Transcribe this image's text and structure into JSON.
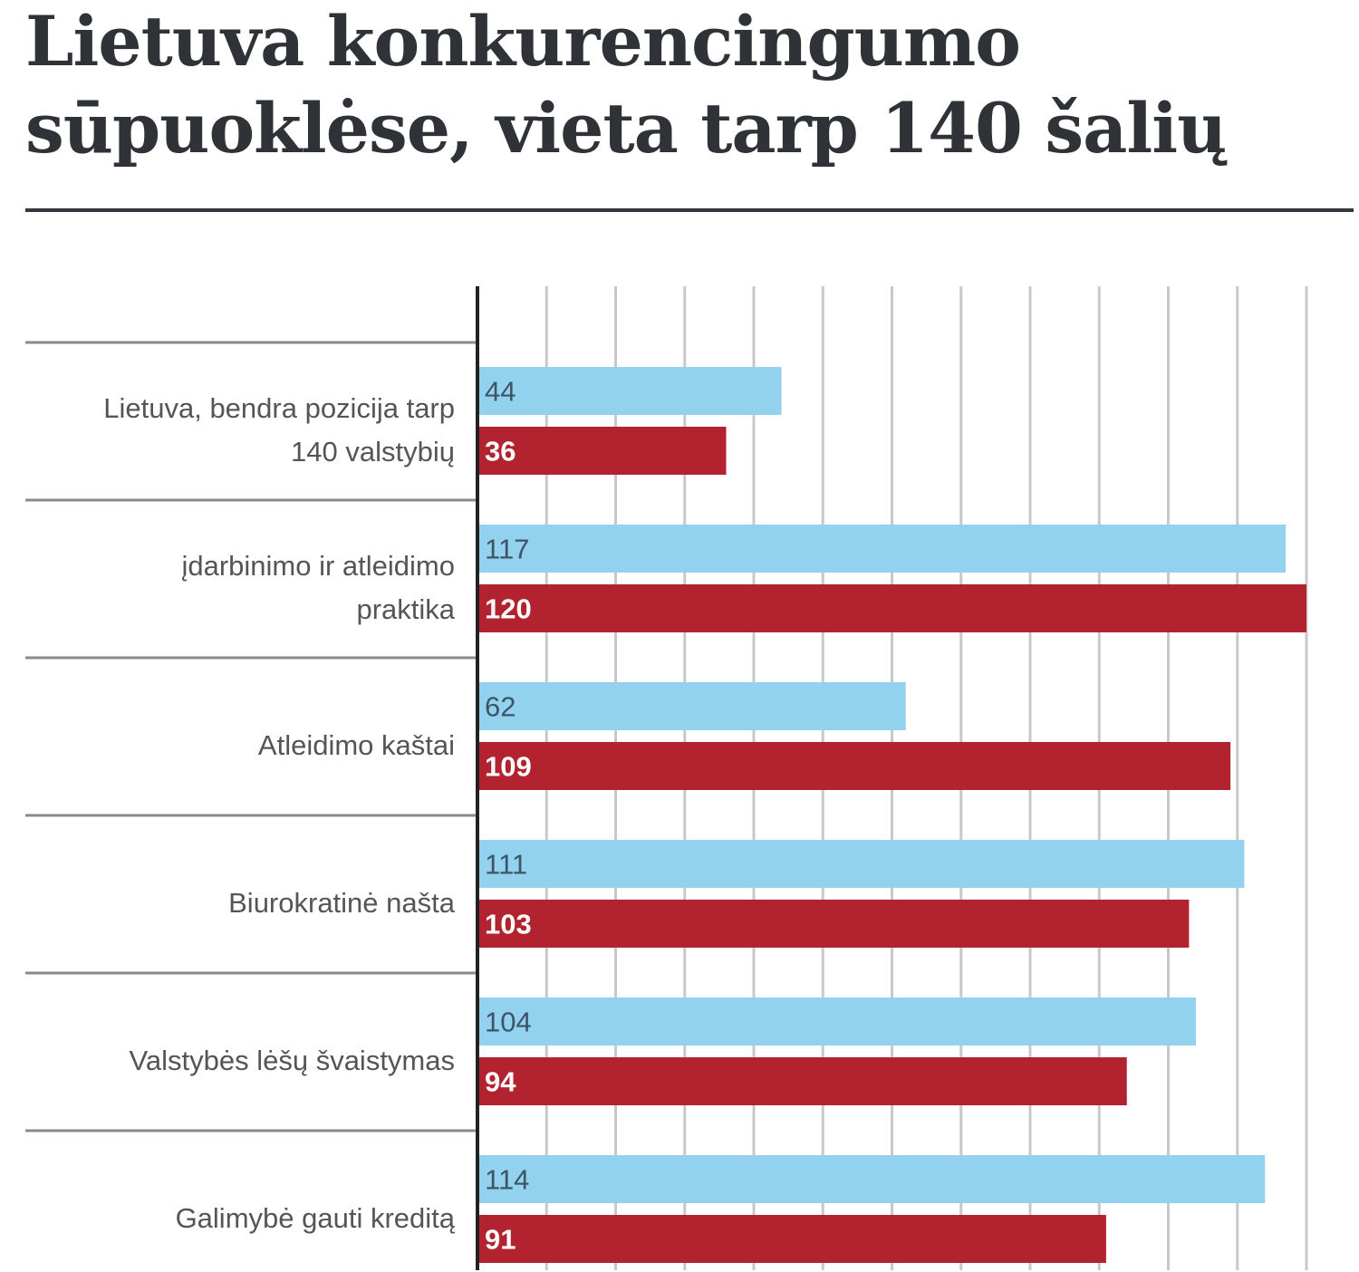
{
  "title": {
    "line1": "Lietuva konkurencingumo",
    "line2": "sūpuoklėse, vieta tarp 140 šalių"
  },
  "colors": {
    "series_a": "#93d2ef",
    "series_b": "#b3222f",
    "series_a_text": "#3d5566",
    "series_b_text": "#ffffff",
    "grid": "#c8c8c8",
    "axis": "#222222",
    "separator": "#8a8a8a"
  },
  "chart_data": {
    "type": "bar",
    "orientation": "horizontal",
    "title": "Lietuva konkurencingumo sūpuoklėse, vieta tarp 140 šalių",
    "categories": [
      [
        "Lietuva, bendra pozicija tarp",
        "140 valstybių"
      ],
      [
        "įdarbinimo ir atleidimo",
        "praktika"
      ],
      [
        "Atleidimo kaštai"
      ],
      [
        "Biurokratinė našta"
      ],
      [
        "Valstybės lėšų švaistymas"
      ],
      [
        "Galimybė gauti kreditą"
      ]
    ],
    "series": [
      {
        "values": [
          44,
          117,
          62,
          111,
          104,
          114
        ]
      },
      {
        "values": [
          36,
          120,
          109,
          103,
          94,
          91
        ]
      }
    ],
    "xlim": [
      0,
      120
    ],
    "grid": true,
    "legend": "none"
  }
}
